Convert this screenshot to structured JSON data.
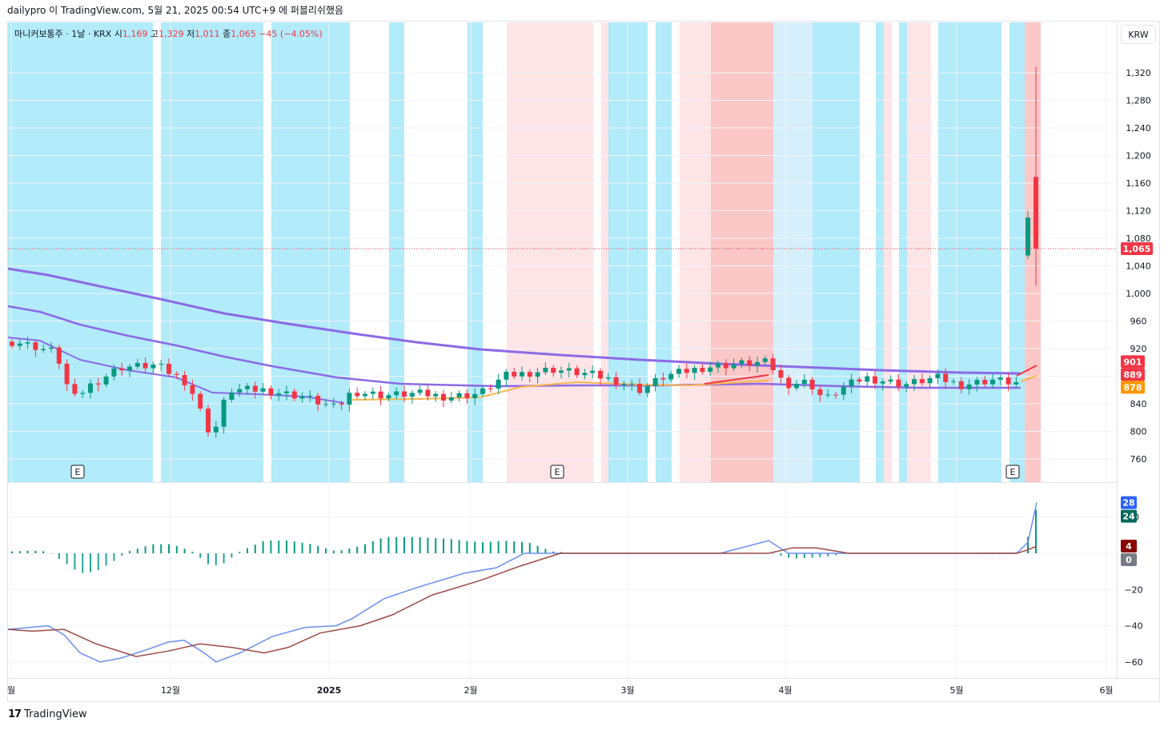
{
  "header": {
    "caption": "dailypro 이 TradingView.com, 5월 21, 2025 00:54 UTC+9 에 퍼블리쉬했음"
  },
  "legend": {
    "symbol": "마니커보통주 · 1날 · KRX",
    "open_label": "시",
    "open": "1,169",
    "high_label": "고",
    "high": "1,329",
    "low_label": "저",
    "low": "1,011",
    "close_label": "종",
    "close": "1,065",
    "change": "−45 (−4.05%)"
  },
  "currency_button": "KRW",
  "footer": {
    "brand": "TradingView",
    "logo_glyph": "17"
  },
  "colors": {
    "up": "#089981",
    "down": "#f23645",
    "cyan_band": "#b2ebfa",
    "light_cyan_band": "#d6effa",
    "pink_band": "#fde4e6",
    "red_band": "#fbc7c7",
    "ma": "#8c6ae6",
    "orange": "#ffb74d",
    "macd": "#6b8ef0",
    "signal": "#9c4a46"
  },
  "chart_data": [
    {
      "type": "candlestick",
      "price_axis": {
        "ticks": [
          760,
          800,
          840,
          880,
          920,
          960,
          1000,
          1040,
          1080,
          1120,
          1160,
          1200,
          1240,
          1280,
          1320
        ],
        "tick_labels": [
          "760",
          "800",
          "840",
          "",
          "920",
          "960",
          "1,000",
          "1,040",
          "1,080",
          "1,120",
          "1,160",
          "1,200",
          "1,240",
          "1,280",
          "1,320"
        ]
      },
      "time_axis": [
        "월",
        "12월",
        "2025",
        "2월",
        "3월",
        "4월",
        "5월",
        "6월"
      ],
      "earnings_markers": [
        "E",
        "E",
        "E"
      ],
      "last_price": 1065,
      "last_price_label": "1,065",
      "price_tags": [
        {
          "label": "901",
          "value": 901,
          "color": "#f23645"
        },
        {
          "label": "889",
          "value": 889,
          "color": "#f23645"
        },
        {
          "label": "878",
          "value": 878,
          "color": "#ff9800"
        }
      ],
      "recent_candles": [
        {
          "open": 1055,
          "high": 1120,
          "low": 1050,
          "close": 1110
        },
        {
          "open": 1169,
          "high": 1329,
          "low": 1011,
          "close": 1065
        }
      ]
    },
    {
      "type": "macd",
      "axis_ticks": [
        20,
        0,
        -20,
        -40,
        -60
      ],
      "axis_tick_labels": [
        "20",
        "",
        "−20",
        "−40",
        "−60"
      ],
      "tags": [
        {
          "label": "28",
          "value": 28,
          "color": "#2962ff"
        },
        {
          "label": "24",
          "value": 24,
          "color": "#00695c"
        },
        {
          "label": "4",
          "value": 4,
          "color": "#8b0000"
        },
        {
          "label": "0",
          "value": 0,
          "color": "#787b86"
        }
      ]
    }
  ]
}
